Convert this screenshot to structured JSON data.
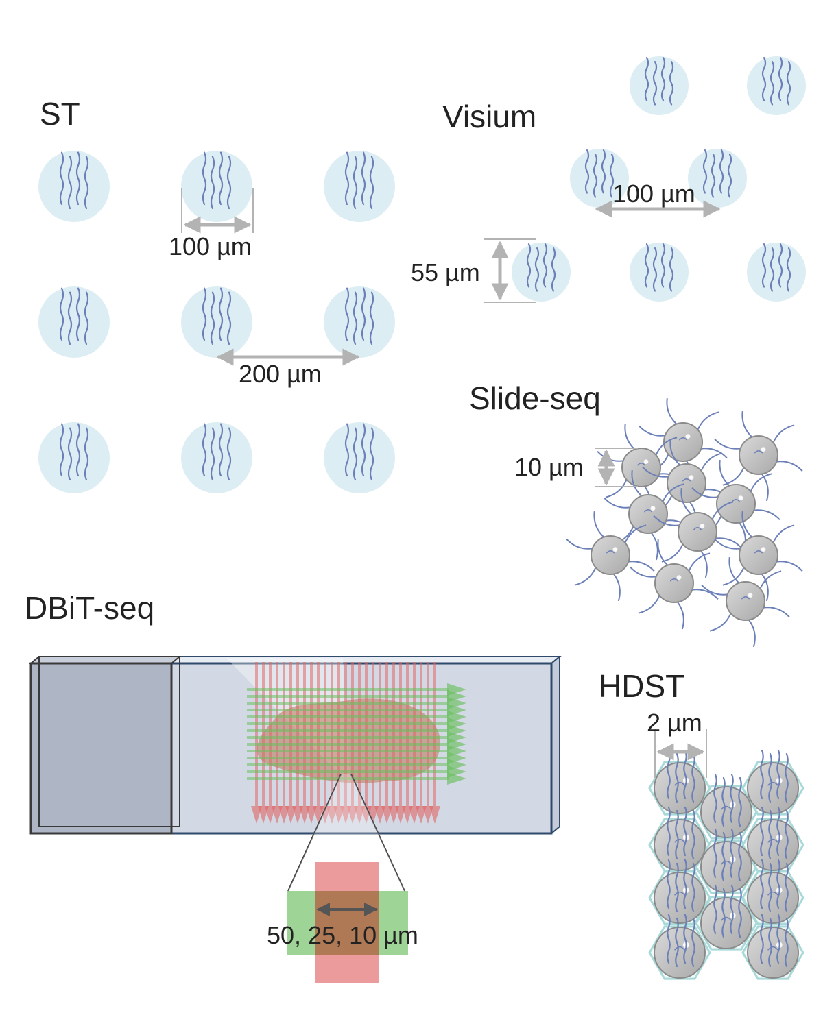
{
  "sections": {
    "st": {
      "title": "ST",
      "spot_diameter_label": "100 µm",
      "spot_spacing_label": "200 µm"
    },
    "visium": {
      "title": "Visium",
      "spot_diameter_label": "55 µm",
      "spot_spacing_label": "100 µm"
    },
    "slide_seq": {
      "title": "Slide-seq",
      "bead_diameter_label": "10 µm"
    },
    "dbit_seq": {
      "title": "DBiT-seq",
      "pixel_size_label": "50, 25, 10 µm"
    },
    "hdst": {
      "title": "HDST",
      "bead_diameter_label": "2 µm"
    }
  },
  "colors": {
    "spot_fill": "#dceef3",
    "strand": "#6b7fb8",
    "bead_fill": "#c4c4c4",
    "bead_stroke": "#8a8a8a",
    "arrow": "#b3b3b3",
    "hex_stroke": "#a9d8d8",
    "slide_fill": "#d3d9e4",
    "slide_edge": "#2f4a6b",
    "slide_label_area": "#aeb6c6",
    "channel_red": "#e06666",
    "channel_green": "#6abf5e",
    "tissue": "#b77a5a"
  }
}
